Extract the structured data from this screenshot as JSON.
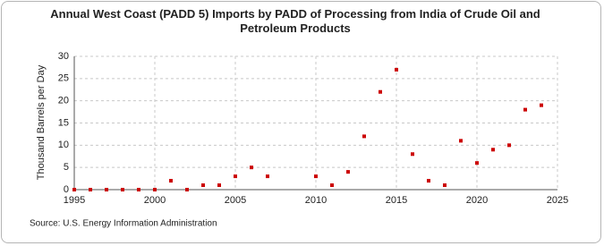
{
  "chart_data": {
    "type": "scatter",
    "title": "Annual West Coast (PADD 5) Imports by PADD of Processing from India of Crude Oil and Petroleum Products",
    "y_label": "Thousand Barrels per Day",
    "source": "Source: U.S. Energy Information Administration",
    "color": "#cc0000",
    "x": [
      1995,
      1996,
      1997,
      1998,
      1999,
      2000,
      2001,
      2002,
      2003,
      2004,
      2005,
      2006,
      2007,
      2010,
      2011,
      2012,
      2013,
      2014,
      2015,
      2016,
      2017,
      2018,
      2019,
      2020,
      2021,
      2022,
      2023,
      2024
    ],
    "values": [
      0,
      0,
      0,
      0,
      0,
      0,
      2,
      0,
      1,
      1,
      3,
      5,
      3,
      3,
      1,
      4,
      12,
      22,
      27,
      8,
      2,
      1,
      11,
      6,
      9,
      10,
      18,
      19
    ],
    "xlim": [
      1995,
      2025
    ],
    "xticks": [
      1995,
      2000,
      2005,
      2010,
      2015,
      2020,
      2025
    ],
    "ylim": [
      0,
      30
    ],
    "yticks": [
      0,
      5,
      10,
      15,
      20,
      25,
      30
    ],
    "grid": true
  }
}
